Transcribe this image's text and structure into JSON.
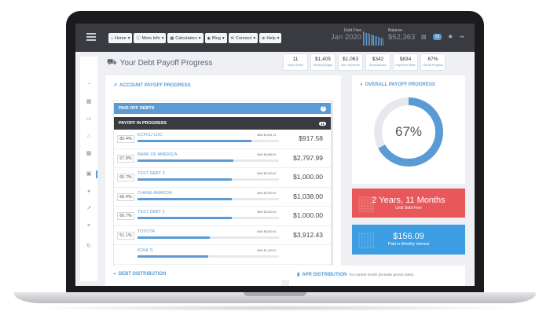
{
  "nav": {
    "items": [
      {
        "label": "Home",
        "icon": "home-icon"
      },
      {
        "label": "More Info",
        "icon": "info-icon"
      },
      {
        "label": "Calculators",
        "icon": "calculator-icon"
      },
      {
        "label": "Blog",
        "icon": "rss-icon"
      },
      {
        "label": "Connect",
        "icon": "envelope-icon"
      },
      {
        "label": "Help",
        "icon": "life-ring-icon"
      }
    ]
  },
  "header": {
    "debt_free_label": "Debt Free",
    "debt_free_date": "Jan 2020",
    "balance_label": "Balance",
    "balance_value": "$52,363",
    "badge": "15",
    "sparkline_levels": [
      0.9,
      0.85,
      0.82,
      0.78,
      0.75,
      0.72,
      0.7,
      0.66,
      0.62,
      0.58,
      0.55,
      0.52,
      0.48,
      0.45
    ]
  },
  "page": {
    "title": "Your Debt Payoff Progress"
  },
  "stats": [
    {
      "value": "11",
      "label": "Active Debts"
    },
    {
      "value": "$1,405",
      "label": "Monthly Budget"
    },
    {
      "value": "$1,063",
      "label": "Min. Payments"
    },
    {
      "value": "$342",
      "label": "Snowball Amt."
    },
    {
      "value": "$834",
      "label": "Payments Made"
    },
    {
      "value": "67%",
      "label": "Overall Progress"
    }
  ],
  "account_panel": {
    "title": "ACCOUNT PAYOFF PROGRESS",
    "paid_off_label": "PAID OFF DEBTS",
    "paid_off_badge": "?",
    "in_progress_label": "PAYOFF IN PROGRESS",
    "in_progress_count": "11",
    "debts": [
      {
        "pct": "80.4%",
        "name": "ECFCU LOC",
        "was": "WAS $4,691.74",
        "amount": "$917.58",
        "progress": 0.804
      },
      {
        "pct": "67.8%",
        "name": "BANK OF AMERICA",
        "was": "WAS $8,686.00",
        "amount": "$2,797.99",
        "progress": 0.678
      },
      {
        "pct": "66.7%",
        "name": "TEST DEBT 3",
        "was": "WAS $3,000.00",
        "amount": "$1,000.00",
        "progress": 0.667
      },
      {
        "pct": "66.4%",
        "name": "CHASE AMAZON",
        "was": "WAS $3,090.00",
        "amount": "$1,038.00",
        "progress": 0.664
      },
      {
        "pct": "66.7%",
        "name": "TEST DEBT 2",
        "was": "WAS $3,000.00",
        "amount": "$1,000.00",
        "progress": 0.667
      },
      {
        "pct": "51.1%",
        "name": "TOYOTA",
        "was": "WAS $8,000.00",
        "amount": "$3,912.43",
        "progress": 0.511
      },
      {
        "pct": "",
        "name": "KOHL'S",
        "was": "WAS $1,200.00",
        "amount": "",
        "progress": 0.5
      }
    ]
  },
  "overall_panel": {
    "title": "OVERALL PAYOFF PROGRESS",
    "percent_text": "67%",
    "progress": 0.67,
    "ring_color": "#5b9bd5",
    "track_color": "#e6e8ee"
  },
  "debt_free_card": {
    "value": "2 Years, 11 Months",
    "label": "Until Debt Free",
    "color": "#e8585b"
  },
  "interest_card": {
    "value": "$156.09",
    "label": "Paid in Monthly Interest",
    "color": "#3d9de3"
  },
  "bottom": {
    "debt_distribution": "DEBT DISTRIBUTION",
    "apr_distribution": "APR DISTRIBUTION",
    "apr_sub": "For current month (includes promo rates)"
  }
}
